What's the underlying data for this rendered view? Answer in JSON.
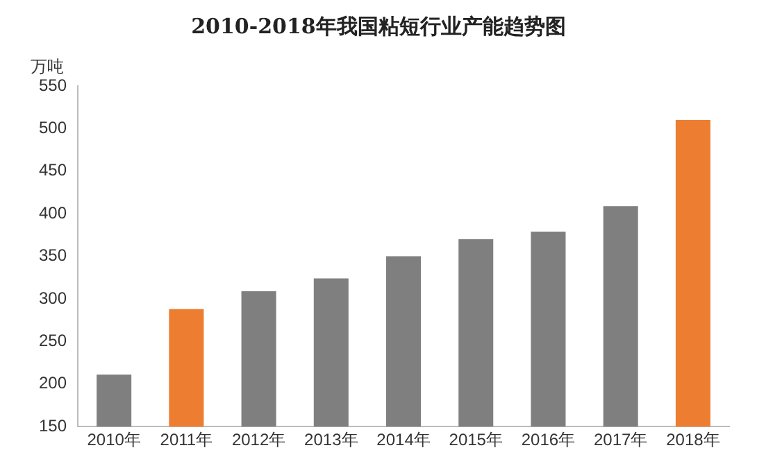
{
  "chart_data": {
    "type": "bar",
    "title": "2010-2018年我国粘短行业产能趋势图",
    "ylabel": "万吨",
    "categories": [
      "2010年",
      "2011年",
      "2012年",
      "2013年",
      "2014年",
      "2015年",
      "2016年",
      "2017年",
      "2018年"
    ],
    "values": [
      211,
      288,
      309,
      324,
      350,
      370,
      379,
      409,
      510
    ],
    "colors": [
      "#7f7f7f",
      "#ed7d31",
      "#7f7f7f",
      "#7f7f7f",
      "#7f7f7f",
      "#7f7f7f",
      "#7f7f7f",
      "#7f7f7f",
      "#ed7d31"
    ],
    "ylim": [
      150,
      550
    ],
    "yticks": [
      150,
      200,
      250,
      300,
      350,
      400,
      450,
      500,
      550
    ],
    "grid": false,
    "legend": false
  }
}
